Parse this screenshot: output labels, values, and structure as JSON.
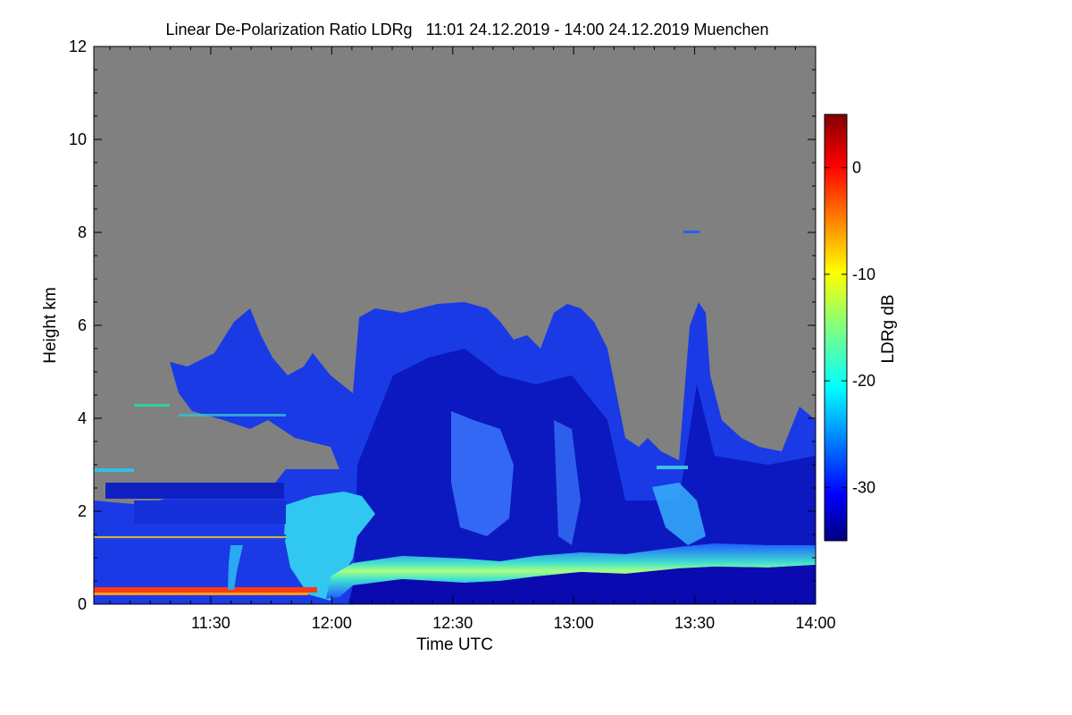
{
  "chart_data": {
    "type": "heatmap",
    "title": "Linear De-Polarization Ratio LDRg   11:01 24.12.2019 - 14:00 24.12.2019 Muenchen",
    "xlabel": "Time UTC",
    "ylabel": "Height km",
    "x_range": [
      "11:01",
      "14:00"
    ],
    "xlim_minutes_utc": [
      661,
      840
    ],
    "x_ticks": [
      {
        "label": "11:30",
        "minute": 690
      },
      {
        "label": "12:00",
        "minute": 720
      },
      {
        "label": "12:30",
        "minute": 750
      },
      {
        "label": "13:00",
        "minute": 780
      },
      {
        "label": "13:30",
        "minute": 810
      },
      {
        "label": "14:00",
        "minute": 840
      }
    ],
    "ylim": [
      0,
      12
    ],
    "y_ticks": [
      0,
      2,
      4,
      6,
      8,
      10,
      12
    ],
    "background_color": "#808080",
    "colorbar": {
      "label": "LDRg dB",
      "range": [
        -35,
        5
      ],
      "ticks": [
        0,
        -10,
        -20,
        -30
      ],
      "colormap": "jet"
    },
    "features": [
      {
        "name": "melting layer bright band",
        "time_range": [
          "11:58",
          "14:00"
        ],
        "height_km": [
          0.7,
          1.1
        ],
        "ldr_db": -20
      },
      {
        "name": "ice cloud",
        "time_range": [
          "11:17",
          "14:00"
        ],
        "height_km": [
          1.2,
          6.6
        ],
        "ldr_db": -30
      },
      {
        "name": "low layer",
        "time_range": [
          "11:01",
          "11:56"
        ],
        "height_km": [
          0.2,
          0.35
        ],
        "ldr_db": -2
      },
      {
        "name": "mid layers",
        "time_range": [
          "11:01",
          "11:55"
        ],
        "height_km": [
          1.2,
          2.6
        ],
        "ldr_db": -28
      }
    ]
  }
}
